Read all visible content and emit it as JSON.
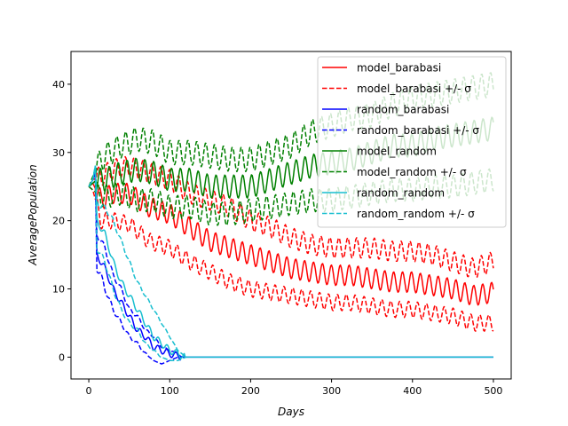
{
  "chart_data": {
    "type": "line",
    "title": "",
    "xlabel": "Days",
    "ylabel": "AveragePopulation",
    "xlim": [
      -22,
      522
    ],
    "ylim": [
      -3.2,
      44.8
    ],
    "xticks": [
      0,
      100,
      200,
      300,
      400,
      500
    ],
    "yticks": [
      0,
      10,
      20,
      30,
      40
    ],
    "grid": false,
    "legend_position": "top-right",
    "series": [
      {
        "name": "model_barabasi",
        "color": "#ff0000",
        "style": "solid",
        "days": [
          0,
          5,
          15,
          30,
          50,
          75,
          100,
          125,
          150,
          175,
          200,
          225,
          250,
          275,
          300,
          325,
          350,
          375,
          400,
          425,
          450,
          475,
          500
        ],
        "values": [
          25,
          25.5,
          23,
          24,
          24,
          22,
          21,
          19,
          17,
          16,
          15,
          14,
          13,
          12.5,
          12,
          12,
          11.5,
          11,
          11,
          10.5,
          10,
          9,
          9.5
        ],
        "osc_amplitude": 1.5
      },
      {
        "name": "model_barabasi +/- σ",
        "color": "#ff0000",
        "style": "dashed",
        "days": [
          0,
          5,
          15,
          30,
          50,
          75,
          100,
          125,
          150,
          175,
          200,
          225,
          250,
          275,
          300,
          325,
          350,
          375,
          400,
          425,
          450,
          475,
          500
        ],
        "values": [
          25,
          26,
          26.5,
          27.5,
          28,
          27,
          26,
          24,
          23,
          22,
          20,
          19,
          17.5,
          16.5,
          16,
          16,
          16,
          15.5,
          15.5,
          15,
          14,
          13,
          14
        ],
        "osc_amplitude": 1.5
      },
      {
        "name": "",
        "color": "#ff0000",
        "style": "dashed",
        "days": [
          0,
          5,
          15,
          30,
          50,
          75,
          100,
          125,
          150,
          175,
          200,
          225,
          250,
          275,
          300,
          325,
          350,
          375,
          400,
          425,
          450,
          475,
          500
        ],
        "values": [
          25,
          24.5,
          20,
          20,
          19.5,
          17,
          16,
          14,
          12.5,
          11,
          10,
          9.5,
          9,
          8.5,
          8,
          8,
          7.5,
          7,
          7,
          6.5,
          6,
          5,
          5
        ],
        "osc_amplitude": 1.2
      },
      {
        "name": "random_barabasi",
        "color": "#0000ff",
        "style": "solid",
        "days": [
          0,
          5,
          8,
          10,
          15,
          20,
          30,
          40,
          50,
          60,
          70,
          80,
          90,
          100,
          110,
          115,
          120,
          500
        ],
        "values": [
          25,
          26,
          27,
          15,
          14,
          13,
          10,
          8,
          6,
          4,
          3,
          1.5,
          1,
          0.5,
          0.2,
          0,
          0,
          0
        ],
        "osc_amplitude": 0.5
      },
      {
        "name": "random_barabasi +/- σ",
        "color": "#0000ff",
        "style": "dashed",
        "days": [
          0,
          5,
          8,
          10,
          15,
          20,
          30,
          40,
          50,
          60,
          70,
          80,
          90,
          100,
          110,
          115,
          120
        ],
        "values": [
          25,
          26,
          27,
          18,
          17,
          16,
          12,
          10,
          7,
          6,
          4,
          3,
          1.5,
          1,
          0.5,
          0,
          0
        ],
        "osc_amplitude": 0.5
      },
      {
        "name": "",
        "color": "#0000ff",
        "style": "dashed",
        "days": [
          0,
          5,
          8,
          10,
          15,
          20,
          30,
          40,
          50,
          60,
          70,
          80,
          90,
          100,
          110
        ],
        "values": [
          25,
          26,
          27,
          13,
          12,
          10,
          7,
          5,
          3,
          2,
          0.5,
          -0.5,
          -1,
          -0.5,
          0
        ],
        "osc_amplitude": 0.5
      },
      {
        "name": "model_random",
        "color": "#008000",
        "style": "solid",
        "days": [
          0,
          10,
          20,
          40,
          60,
          80,
          100,
          125,
          150,
          175,
          200,
          225,
          250,
          275,
          300,
          325,
          350,
          375,
          400,
          425,
          450,
          475,
          500
        ],
        "values": [
          25,
          26,
          26,
          27,
          27.5,
          27,
          26,
          26,
          25,
          25,
          25,
          26,
          27,
          28,
          28.5,
          29,
          30,
          31,
          31,
          32,
          32.5,
          33,
          33.5
        ],
        "osc_amplitude": 1.7
      },
      {
        "name": "model_random +/- σ",
        "color": "#008000",
        "style": "dashed",
        "days": [
          0,
          10,
          20,
          40,
          60,
          80,
          100,
          125,
          150,
          175,
          200,
          225,
          250,
          275,
          300,
          325,
          350,
          375,
          400,
          425,
          450,
          475,
          500
        ],
        "values": [
          25,
          28,
          29.5,
          31,
          32,
          31.5,
          30,
          30,
          29.5,
          29,
          29,
          30,
          31,
          33,
          34,
          35,
          35.5,
          37,
          38,
          38.5,
          39,
          39.5,
          40
        ],
        "osc_amplitude": 1.8
      },
      {
        "name": "",
        "color": "#008000",
        "style": "dashed",
        "days": [
          0,
          10,
          20,
          40,
          60,
          80,
          100,
          125,
          150,
          175,
          200,
          225,
          250,
          275,
          300,
          325,
          350,
          375,
          400,
          425,
          450,
          475,
          500
        ],
        "values": [
          25,
          24,
          23.5,
          24,
          23,
          23,
          22,
          22,
          21,
          21,
          21.5,
          22,
          22.5,
          23,
          23,
          23.5,
          24,
          24.5,
          24.5,
          25,
          25,
          25.5,
          26
        ],
        "osc_amplitude": 1.7
      },
      {
        "name": "random_random",
        "color": "#17becf",
        "style": "solid",
        "days": [
          0,
          5,
          8,
          10,
          15,
          20,
          30,
          40,
          50,
          60,
          70,
          80,
          90,
          100,
          110,
          120,
          500
        ],
        "values": [
          25,
          26,
          28,
          20,
          19,
          18,
          14,
          11,
          9,
          7,
          5,
          3,
          2,
          1,
          0.5,
          0,
          0
        ],
        "osc_amplitude": 0.5
      },
      {
        "name": "random_random +/- σ",
        "color": "#17becf",
        "style": "dashed",
        "days": [
          0,
          5,
          8,
          10,
          15,
          20,
          30,
          40,
          50,
          60,
          70,
          80,
          90,
          100,
          110,
          120
        ],
        "values": [
          25,
          26,
          28,
          23,
          22,
          22,
          20,
          17,
          14,
          11,
          9,
          7,
          5,
          3,
          1,
          0
        ],
        "osc_amplitude": 0.5
      },
      {
        "name": "",
        "color": "#17becf",
        "style": "dashed",
        "days": [
          0,
          5,
          8,
          10,
          15,
          20,
          30,
          40,
          50,
          60,
          70,
          80,
          90,
          100,
          110,
          120
        ],
        "values": [
          25,
          26,
          28,
          16,
          15,
          14,
          10,
          7,
          5,
          4,
          2,
          1,
          0,
          -0.5,
          -0.5,
          0
        ],
        "osc_amplitude": 0.5
      }
    ]
  }
}
